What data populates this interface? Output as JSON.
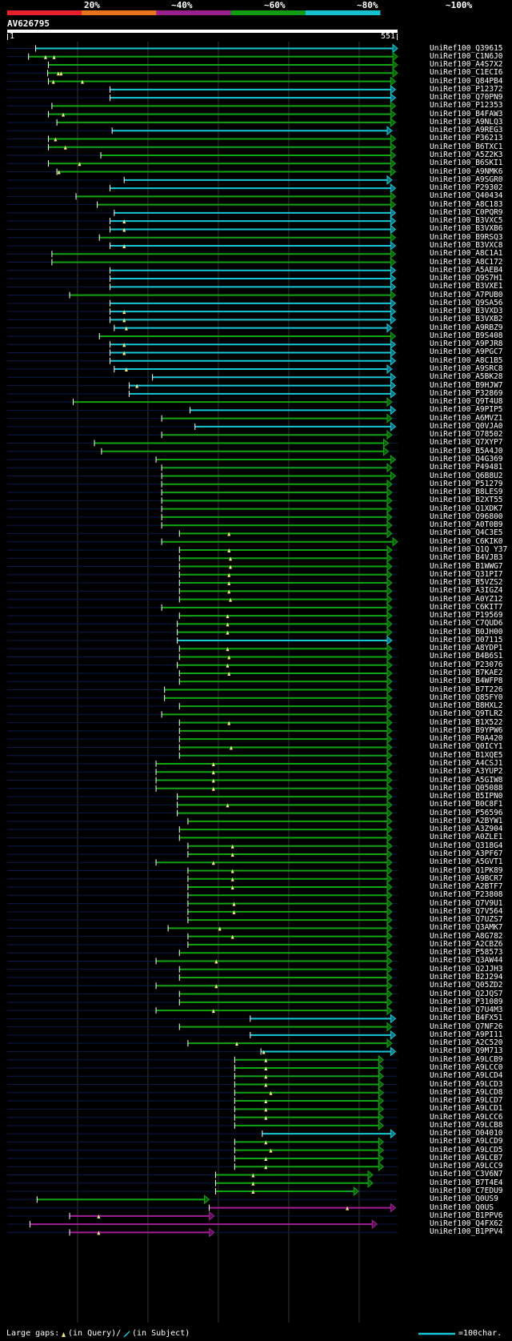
{
  "legend": {
    "labels": [
      "20%",
      "~40%",
      "~60%",
      "~80%",
      "~100%"
    ],
    "colors": [
      "#e8202a",
      "#e8751c",
      "#9a1e8c",
      "#119b11",
      "#16c0cc"
    ]
  },
  "query": {
    "name": "AV626795",
    "start": "1",
    "end": "551"
  },
  "footer": {
    "large_gaps": "Large gaps:",
    "in_query": "(in Query)/",
    "in_subject": "(in Subject)",
    "scale": "=100char."
  },
  "rows": [
    {
      "id": "UniRef100_Q39615",
      "start": 40,
      "end": 551,
      "c": "cyan",
      "g": []
    },
    {
      "id": "UniRef100_C1N6J0",
      "start": 30,
      "end": 551,
      "c": "green",
      "g": [
        54,
        66
      ]
    },
    {
      "id": "UniRef100_A4S7X2",
      "start": 58,
      "end": 551,
      "c": "green",
      "g": []
    },
    {
      "id": "UniRef100_C1ECI6",
      "start": 57,
      "end": 551,
      "c": "green",
      "g": [
        72,
        76
      ]
    },
    {
      "id": "UniRef100_Q84PB4",
      "start": 58,
      "end": 548,
      "c": "green",
      "g": [
        65,
        106
      ]
    },
    {
      "id": "UniRef100_P12372",
      "start": 145,
      "end": 548,
      "c": "cyan",
      "g": []
    },
    {
      "id": "UniRef100_Q70PN9",
      "start": 145,
      "end": 548,
      "c": "cyan",
      "g": []
    },
    {
      "id": "UniRef100_P12353",
      "start": 63,
      "end": 548,
      "c": "green",
      "g": []
    },
    {
      "id": "UniRef100_B4FAW3",
      "start": 58,
      "end": 548,
      "c": "green",
      "g": [
        79
      ]
    },
    {
      "id": "UniRef100_A9NLQ3",
      "start": 70,
      "end": 548,
      "c": "green",
      "g": []
    },
    {
      "id": "UniRef100_A9REG3",
      "start": 148,
      "end": 543,
      "c": "cyan",
      "g": []
    },
    {
      "id": "UniRef100_P36213",
      "start": 58,
      "end": 548,
      "c": "green",
      "g": [
        68
      ]
    },
    {
      "id": "UniRef100_B6TXC1",
      "start": 58,
      "end": 548,
      "c": "green",
      "g": [
        82
      ]
    },
    {
      "id": "UniRef100_A5Z2K3",
      "start": 132,
      "end": 548,
      "c": "green",
      "g": []
    },
    {
      "id": "UniRef100_B6SKI1",
      "start": 58,
      "end": 548,
      "c": "green",
      "g": [
        102
      ]
    },
    {
      "id": "UniRef100_A9NMK6",
      "start": 70,
      "end": 548,
      "c": "green",
      "g": [
        73
      ]
    },
    {
      "id": "UniRef100_A9SGR0",
      "start": 165,
      "end": 543,
      "c": "cyan",
      "g": []
    },
    {
      "id": "UniRef100_P29302",
      "start": 145,
      "end": 548,
      "c": "cyan",
      "g": []
    },
    {
      "id": "UniRef100_Q40434",
      "start": 97,
      "end": 548,
      "c": "green",
      "g": []
    },
    {
      "id": "UniRef100_A8C183",
      "start": 127,
      "end": 548,
      "c": "green",
      "g": []
    },
    {
      "id": "UniRef100_C0PQR9",
      "start": 151,
      "end": 548,
      "c": "cyan",
      "g": []
    },
    {
      "id": "UniRef100_B3VXC5",
      "start": 145,
      "end": 548,
      "c": "cyan",
      "g": [
        165
      ]
    },
    {
      "id": "UniRef100_B3VXB6",
      "start": 145,
      "end": 548,
      "c": "cyan",
      "g": [
        165
      ]
    },
    {
      "id": "UniRef100_B9RSQ3",
      "start": 130,
      "end": 548,
      "c": "green",
      "g": []
    },
    {
      "id": "UniRef100_B3VXC8",
      "start": 145,
      "end": 548,
      "c": "cyan",
      "g": [
        165
      ]
    },
    {
      "id": "UniRef100_A8C1A1",
      "start": 63,
      "end": 548,
      "c": "green",
      "g": []
    },
    {
      "id": "UniRef100_A8C172",
      "start": 63,
      "end": 548,
      "c": "green",
      "g": []
    },
    {
      "id": "UniRef100_A5AEB4",
      "start": 145,
      "end": 548,
      "c": "cyan",
      "g": []
    },
    {
      "id": "UniRef100_Q9S7H1",
      "start": 145,
      "end": 548,
      "c": "cyan",
      "g": []
    },
    {
      "id": "UniRef100_B3VXE1",
      "start": 145,
      "end": 548,
      "c": "cyan",
      "g": []
    },
    {
      "id": "UniRef100_A7PUB0",
      "start": 88,
      "end": 548,
      "c": "green",
      "g": []
    },
    {
      "id": "UniRef100_Q9SA56",
      "start": 145,
      "end": 548,
      "c": "cyan",
      "g": []
    },
    {
      "id": "UniRef100_B3VXD3",
      "start": 145,
      "end": 548,
      "c": "cyan",
      "g": [
        165
      ]
    },
    {
      "id": "UniRef100_B3VXB2",
      "start": 145,
      "end": 548,
      "c": "cyan",
      "g": [
        165
      ]
    },
    {
      "id": "UniRef100_A9RBZ9",
      "start": 151,
      "end": 543,
      "c": "cyan",
      "g": [
        168
      ]
    },
    {
      "id": "UniRef100_B9S408",
      "start": 130,
      "end": 548,
      "c": "green",
      "g": []
    },
    {
      "id": "UniRef100_A9PJR8",
      "start": 145,
      "end": 548,
      "c": "cyan",
      "g": [
        165
      ]
    },
    {
      "id": "UniRef100_A9PGC7",
      "start": 145,
      "end": 548,
      "c": "cyan",
      "g": [
        165
      ]
    },
    {
      "id": "UniRef100_A8C1B5",
      "start": 145,
      "end": 548,
      "c": "cyan",
      "g": []
    },
    {
      "id": "UniRef100_A9SRC8",
      "start": 151,
      "end": 543,
      "c": "cyan",
      "g": [
        168
      ]
    },
    {
      "id": "UniRef100_A5BK28",
      "start": 205,
      "end": 548,
      "c": "cyan",
      "g": []
    },
    {
      "id": "UniRef100_B9HJW7",
      "start": 172,
      "end": 548,
      "c": "cyan",
      "g": [
        183
      ]
    },
    {
      "id": "UniRef100_P32869",
      "start": 172,
      "end": 548,
      "c": "cyan",
      "g": []
    },
    {
      "id": "UniRef100_Q9T4U8",
      "start": 93,
      "end": 543,
      "c": "green",
      "g": []
    },
    {
      "id": "UniRef100_A9PIP5",
      "start": 258,
      "end": 548,
      "c": "cyan",
      "g": []
    },
    {
      "id": "UniRef100_A6MVZ1",
      "start": 218,
      "end": 543,
      "c": "green",
      "g": []
    },
    {
      "id": "UniRef100_Q0VJA0",
      "start": 265,
      "end": 548,
      "c": "cyan",
      "g": []
    },
    {
      "id": "UniRef100_O78502",
      "start": 218,
      "end": 543,
      "c": "green",
      "g": []
    },
    {
      "id": "UniRef100_Q7XYP7",
      "start": 123,
      "end": 538,
      "c": "green",
      "g": []
    },
    {
      "id": "UniRef100_B5A4J0",
      "start": 133,
      "end": 538,
      "c": "green",
      "g": []
    },
    {
      "id": "UniRef100_Q4G369",
      "start": 210,
      "end": 548,
      "c": "green",
      "g": []
    },
    {
      "id": "UniRef100_P49481",
      "start": 218,
      "end": 543,
      "c": "green",
      "g": []
    },
    {
      "id": "UniRef100_Q6B8U2",
      "start": 218,
      "end": 548,
      "c": "green",
      "g": []
    },
    {
      "id": "UniRef100_P51279",
      "start": 218,
      "end": 543,
      "c": "green",
      "g": []
    },
    {
      "id": "UniRef100_B8LES9",
      "start": 218,
      "end": 543,
      "c": "green",
      "g": []
    },
    {
      "id": "UniRef100_B2XT55",
      "start": 218,
      "end": 543,
      "c": "green",
      "g": []
    },
    {
      "id": "UniRef100_Q1XDK7",
      "start": 218,
      "end": 543,
      "c": "green",
      "g": []
    },
    {
      "id": "UniRef100_O96800",
      "start": 218,
      "end": 543,
      "c": "green",
      "g": []
    },
    {
      "id": "UniRef100_A0T0B9",
      "start": 218,
      "end": 543,
      "c": "green",
      "g": []
    },
    {
      "id": "UniRef100_Q4C3E5",
      "start": 243,
      "end": 543,
      "c": "green",
      "g": [
        313
      ]
    },
    {
      "id": "UniRef100_C6KIK0",
      "start": 218,
      "end": 551,
      "c": "green",
      "g": []
    },
    {
      "id": "UniRef100_Q1Q Y37",
      "start": 243,
      "end": 543,
      "c": "green",
      "g": [
        313
      ]
    },
    {
      "id": "UniRef100_B4VJB3",
      "start": 243,
      "end": 543,
      "c": "green",
      "g": [
        315
      ]
    },
    {
      "id": "UniRef100_B1WWG7",
      "start": 243,
      "end": 543,
      "c": "green",
      "g": [
        315
      ]
    },
    {
      "id": "UniRef100_Q31PI7",
      "start": 243,
      "end": 543,
      "c": "green",
      "g": [
        313
      ]
    },
    {
      "id": "UniRef100_B5VZS2",
      "start": 243,
      "end": 543,
      "c": "green",
      "g": [
        313
      ]
    },
    {
      "id": "UniRef100_A3IGZ4",
      "start": 243,
      "end": 543,
      "c": "green",
      "g": [
        313
      ]
    },
    {
      "id": "UniRef100_A0YZ12",
      "start": 243,
      "end": 543,
      "c": "green",
      "g": [
        315
      ]
    },
    {
      "id": "UniRef100_C6KIT7",
      "start": 218,
      "end": 543,
      "c": "green",
      "g": []
    },
    {
      "id": "UniRef100_P19569",
      "start": 243,
      "end": 543,
      "c": "green",
      "g": [
        311
      ]
    },
    {
      "id": "UniRef100_C7QUD6",
      "start": 240,
      "end": 543,
      "c": "green",
      "g": [
        311
      ]
    },
    {
      "id": "UniRef100_B0JH00",
      "start": 240,
      "end": 543,
      "c": "green",
      "g": [
        311
      ]
    },
    {
      "id": "UniRef100_O07115",
      "start": 240,
      "end": 543,
      "c": "cyan",
      "g": []
    },
    {
      "id": "UniRef100_A8YDP1",
      "start": 243,
      "end": 543,
      "c": "green",
      "g": [
        311
      ]
    },
    {
      "id": "UniRef100_B4B6S1",
      "start": 243,
      "end": 543,
      "c": "green",
      "g": [
        313
      ]
    },
    {
      "id": "UniRef100_P23076",
      "start": 240,
      "end": 543,
      "c": "green",
      "g": [
        311
      ]
    },
    {
      "id": "UniRef100_B7KAE2",
      "start": 243,
      "end": 543,
      "c": "green",
      "g": [
        313
      ]
    },
    {
      "id": "UniRef100_B4WFP8",
      "start": 243,
      "end": 543,
      "c": "green",
      "g": []
    },
    {
      "id": "UniRef100_B7T226",
      "start": 222,
      "end": 543,
      "c": "green",
      "g": []
    },
    {
      "id": "UniRef100_Q85FY0",
      "start": 222,
      "end": 543,
      "c": "green",
      "g": []
    },
    {
      "id": "UniRef100_B8HXL2",
      "start": 243,
      "end": 543,
      "c": "green",
      "g": []
    },
    {
      "id": "UniRef100_Q9TLR2",
      "start": 218,
      "end": 543,
      "c": "green",
      "g": []
    },
    {
      "id": "UniRef100_B1X522",
      "start": 243,
      "end": 543,
      "c": "green",
      "g": [
        313
      ]
    },
    {
      "id": "UniRef100_B9YPW6",
      "start": 243,
      "end": 543,
      "c": "green",
      "g": []
    },
    {
      "id": "UniRef100_P0A420",
      "start": 243,
      "end": 543,
      "c": "green",
      "g": []
    },
    {
      "id": "UniRef100_Q0ICY1",
      "start": 243,
      "end": 543,
      "c": "green",
      "g": [
        316
      ]
    },
    {
      "id": "UniRef100_B1XQE5",
      "start": 243,
      "end": 543,
      "c": "green",
      "g": []
    },
    {
      "id": "UniRef100_A4CSJ1",
      "start": 210,
      "end": 543,
      "c": "green",
      "g": [
        291
      ]
    },
    {
      "id": "UniRef100_A3YUP2",
      "start": 210,
      "end": 543,
      "c": "green",
      "g": [
        291
      ]
    },
    {
      "id": "UniRef100_A5GIW8",
      "start": 210,
      "end": 543,
      "c": "green",
      "g": [
        291
      ]
    },
    {
      "id": "UniRef100_Q05088",
      "start": 210,
      "end": 543,
      "c": "green",
      "g": [
        291
      ]
    },
    {
      "id": "UniRef100_B5IPN0",
      "start": 240,
      "end": 543,
      "c": "green",
      "g": []
    },
    {
      "id": "UniRef100_B0C8F1",
      "start": 240,
      "end": 543,
      "c": "green",
      "g": [
        311
      ]
    },
    {
      "id": "UniRef100_P56596",
      "start": 240,
      "end": 543,
      "c": "green",
      "g": []
    },
    {
      "id": "UniRef100_A2BYW1",
      "start": 255,
      "end": 543,
      "c": "green",
      "g": []
    },
    {
      "id": "UniRef100_A3Z904",
      "start": 243,
      "end": 543,
      "c": "green",
      "g": []
    },
    {
      "id": "UniRef100_A0ZLE1",
      "start": 243,
      "end": 543,
      "c": "green",
      "g": []
    },
    {
      "id": "UniRef100_Q318G4",
      "start": 255,
      "end": 543,
      "c": "green",
      "g": [
        318
      ]
    },
    {
      "id": "UniRef100_A3PF67",
      "start": 255,
      "end": 543,
      "c": "green",
      "g": [
        318
      ]
    },
    {
      "id": "UniRef100_A5GVT1",
      "start": 210,
      "end": 543,
      "c": "green",
      "g": [
        291
      ]
    },
    {
      "id": "UniRef100_Q1PK89",
      "start": 255,
      "end": 543,
      "c": "green",
      "g": [
        318
      ]
    },
    {
      "id": "UniRef100_A9BCR7",
      "start": 255,
      "end": 543,
      "c": "green",
      "g": [
        318
      ]
    },
    {
      "id": "UniRef100_A2BTF7",
      "start": 255,
      "end": 543,
      "c": "green",
      "g": [
        318
      ]
    },
    {
      "id": "UniRef100_P23808",
      "start": 255,
      "end": 543,
      "c": "green",
      "g": []
    },
    {
      "id": "UniRef100_Q7V9U1",
      "start": 255,
      "end": 543,
      "c": "green",
      "g": [
        320
      ]
    },
    {
      "id": "UniRef100_Q7V564",
      "start": 255,
      "end": 543,
      "c": "green",
      "g": [
        320
      ]
    },
    {
      "id": "UniRef100_Q7UZS7",
      "start": 255,
      "end": 543,
      "c": "green",
      "g": []
    },
    {
      "id": "UniRef100_Q3AMK7",
      "start": 227,
      "end": 543,
      "c": "green",
      "g": [
        300
      ]
    },
    {
      "id": "UniRef100_A8G782",
      "start": 255,
      "end": 543,
      "c": "green",
      "g": [
        318
      ]
    },
    {
      "id": "UniRef100_A2CBZ6",
      "start": 255,
      "end": 543,
      "c": "green",
      "g": []
    },
    {
      "id": "UniRef100_P58573",
      "start": 243,
      "end": 543,
      "c": "green",
      "g": []
    },
    {
      "id": "UniRef100_Q3AW44",
      "start": 210,
      "end": 543,
      "c": "green",
      "g": [
        295
      ]
    },
    {
      "id": "UniRef100_Q2JJH3",
      "start": 243,
      "end": 543,
      "c": "green",
      "g": []
    },
    {
      "id": "UniRef100_B2J294",
      "start": 243,
      "end": 543,
      "c": "green",
      "g": []
    },
    {
      "id": "UniRef100_Q05ZD2",
      "start": 210,
      "end": 543,
      "c": "green",
      "g": [
        295
      ]
    },
    {
      "id": "UniRef100_Q2JQS7",
      "start": 243,
      "end": 543,
      "c": "green",
      "g": []
    },
    {
      "id": "UniRef100_P31089",
      "start": 243,
      "end": 543,
      "c": "green",
      "g": []
    },
    {
      "id": "UniRef100_Q7U4M3",
      "start": 210,
      "end": 543,
      "c": "green",
      "g": [
        291
      ]
    },
    {
      "id": "UniRef100_B4FX51",
      "start": 343,
      "end": 548,
      "c": "cyan",
      "g": []
    },
    {
      "id": "UniRef100_Q7NF26",
      "start": 243,
      "end": 543,
      "c": "green",
      "g": []
    },
    {
      "id": "UniRef100_A9PI11",
      "start": 343,
      "end": 548,
      "c": "cyan",
      "g": []
    },
    {
      "id": "UniRef100_A2C520",
      "start": 255,
      "end": 543,
      "c": "green",
      "g": [
        324
      ]
    },
    {
      "id": "UniRef100_Q9M713",
      "start": 358,
      "end": 548,
      "c": "cyan",
      "g": [
        362
      ]
    },
    {
      "id": "UniRef100_A9LCB9",
      "start": 321,
      "end": 531,
      "c": "green",
      "g": [
        365
      ]
    },
    {
      "id": "UniRef100_A9LCC0",
      "start": 321,
      "end": 531,
      "c": "green",
      "g": [
        365
      ]
    },
    {
      "id": "UniRef100_A9LCD4",
      "start": 321,
      "end": 531,
      "c": "green",
      "g": [
        365
      ]
    },
    {
      "id": "UniRef100_A9LCD3",
      "start": 321,
      "end": 531,
      "c": "green",
      "g": [
        365
      ]
    },
    {
      "id": "UniRef100_A9LCD8",
      "start": 321,
      "end": 531,
      "c": "green",
      "g": [
        372
      ]
    },
    {
      "id": "UniRef100_A9LCD7",
      "start": 321,
      "end": 531,
      "c": "green",
      "g": [
        365
      ]
    },
    {
      "id": "UniRef100_A9LCD1",
      "start": 321,
      "end": 531,
      "c": "green",
      "g": [
        365
      ]
    },
    {
      "id": "UniRef100_A9LCC6",
      "start": 321,
      "end": 531,
      "c": "green",
      "g": [
        365
      ]
    },
    {
      "id": "UniRef100_A9LCB8",
      "start": 321,
      "end": 531,
      "c": "green",
      "g": []
    },
    {
      "id": "UniRef100_O04010",
      "start": 360,
      "end": 548,
      "c": "cyan",
      "g": []
    },
    {
      "id": "UniRef100_A9LCD9",
      "start": 321,
      "end": 531,
      "c": "green",
      "g": [
        365
      ]
    },
    {
      "id": "UniRef100_A9LCD5",
      "start": 321,
      "end": 531,
      "c": "green",
      "g": [
        372
      ]
    },
    {
      "id": "UniRef100_A9LCB7",
      "start": 321,
      "end": 531,
      "c": "green",
      "g": [
        365
      ]
    },
    {
      "id": "UniRef100_A9LCC9",
      "start": 321,
      "end": 531,
      "c": "green",
      "g": [
        365
      ]
    },
    {
      "id": "UniRef100_C3V6N7",
      "start": 294,
      "end": 516,
      "c": "green",
      "g": [
        347
      ]
    },
    {
      "id": "UniRef100_B7T4E4",
      "start": 294,
      "end": 516,
      "c": "green",
      "g": [
        347
      ]
    },
    {
      "id": "UniRef100_C7EDU9",
      "start": 294,
      "end": 496,
      "c": "green",
      "g": [
        347
      ]
    },
    {
      "id": "UniRef100_Q0US9",
      "start": 42,
      "end": 285,
      "c": "green",
      "g": []
    },
    {
      "id": "UniRef100_Q0US",
      "start": 285,
      "end": 548,
      "c": "purple",
      "g": [
        480
      ]
    },
    {
      "id": "UniRef100_B1PPV6",
      "start": 88,
      "end": 292,
      "c": "purple",
      "g": [
        129
      ]
    },
    {
      "id": "UniRef100_Q4FX62",
      "start": 32,
      "end": 522,
      "c": "purple",
      "g": []
    },
    {
      "id": "UniRef100_B1PPV4",
      "start": 88,
      "end": 292,
      "c": "purple",
      "g": [
        129
      ]
    }
  ]
}
